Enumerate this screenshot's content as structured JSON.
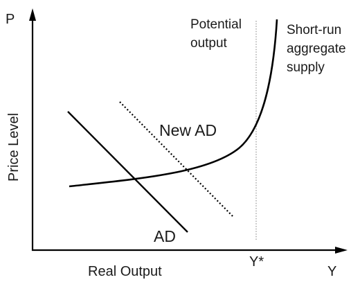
{
  "axes": {
    "y_symbol": "P",
    "x_symbol": "Y",
    "y_label": "Price Level",
    "x_label": "Real Output",
    "potential_tick": "Y*"
  },
  "annotations": {
    "potential_output": [
      "Potential",
      "output"
    ],
    "sras": [
      "Short-run",
      "aggregate",
      "supply"
    ]
  },
  "curves": {
    "ad": "AD",
    "new_ad": "New AD"
  },
  "colors": {
    "ink": "#000000",
    "vertical_line": "#9a9a9a"
  }
}
